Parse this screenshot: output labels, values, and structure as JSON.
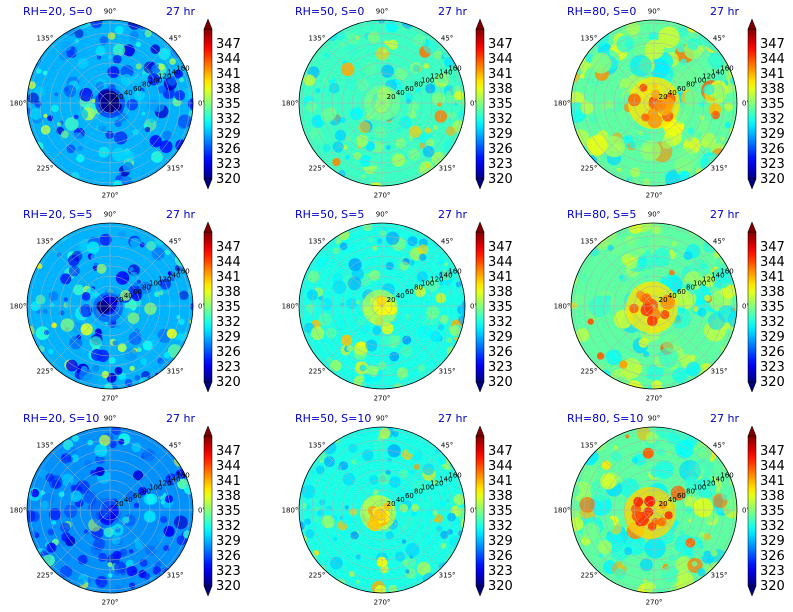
{
  "chart_data": {
    "type": "polar-contour-grid",
    "colormap": "jet",
    "colorbar": {
      "min": 320,
      "max": 350,
      "ticks": [
        320,
        323,
        326,
        329,
        332,
        335,
        338,
        341,
        344,
        347
      ]
    },
    "angle_ticks": [
      "0°",
      "45°",
      "90°",
      "135°",
      "180°",
      "225°",
      "270°",
      "315°"
    ],
    "radial_ticks": [
      "20",
      "40",
      "60",
      "80",
      "100",
      "120",
      "140",
      "160"
    ],
    "panels": [
      {
        "title": "RH=20, S=0",
        "time": "27 hr",
        "rh": 20,
        "shear": 0,
        "background_value": 329,
        "core_value": 322
      },
      {
        "title": "RH=50, S=0",
        "time": "27 hr",
        "rh": 50,
        "shear": 0,
        "background_value": 333,
        "core_value": 336
      },
      {
        "title": "RH=80, S=0",
        "time": "27 hr",
        "rh": 80,
        "shear": 0,
        "background_value": 334,
        "core_value": 345
      },
      {
        "title": "RH=20, S=5",
        "time": "27 hr",
        "rh": 20,
        "shear": 5,
        "background_value": 329,
        "core_value": 324
      },
      {
        "title": "RH=50, S=5",
        "time": "27 hr",
        "rh": 50,
        "shear": 5,
        "background_value": 332,
        "core_value": 340
      },
      {
        "title": "RH=80, S=5",
        "time": "27 hr",
        "rh": 80,
        "shear": 5,
        "background_value": 334,
        "core_value": 345
      },
      {
        "title": "RH=20, S=10",
        "time": "27 hr",
        "rh": 20,
        "shear": 10,
        "background_value": 328,
        "core_value": 326
      },
      {
        "title": "RH=50, S=10",
        "time": "27 hr",
        "rh": 50,
        "shear": 10,
        "background_value": 332,
        "core_value": 342
      },
      {
        "title": "RH=80, S=10",
        "time": "27 hr",
        "rh": 80,
        "shear": 10,
        "background_value": 334,
        "core_value": 346
      }
    ]
  }
}
